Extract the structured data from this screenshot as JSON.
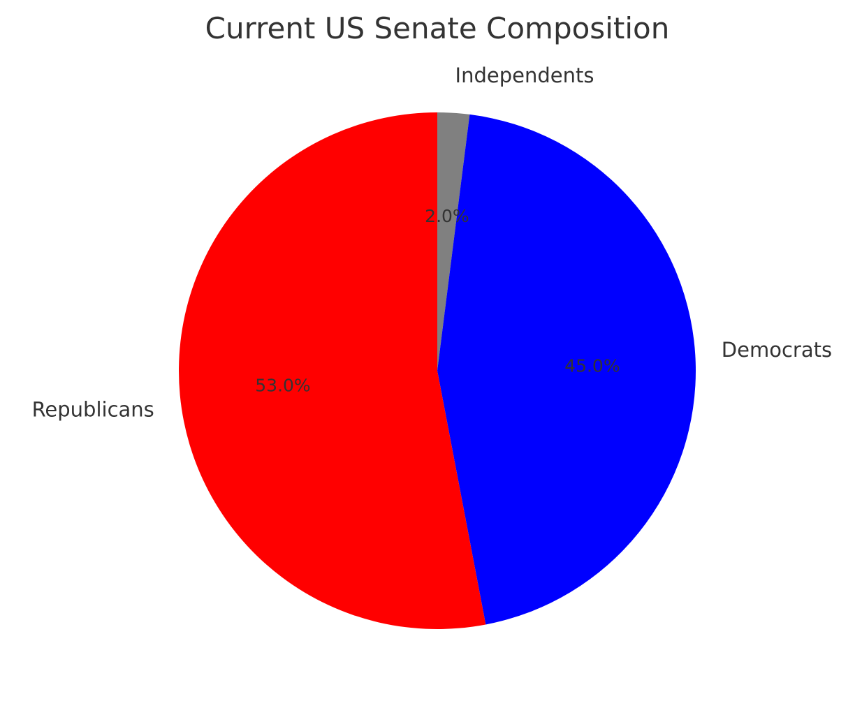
{
  "chart_data": {
    "type": "pie",
    "title": "Current US Senate Composition",
    "start_angle_deg": 90,
    "direction": "clockwise",
    "slices": [
      {
        "label": "Independents",
        "value": 2.0,
        "pct_label": "2.0%",
        "color": "#808080"
      },
      {
        "label": "Democrats",
        "value": 45.0,
        "pct_label": "45.0%",
        "color": "#0000ff"
      },
      {
        "label": "Republicans",
        "value": 53.0,
        "pct_label": "53.0%",
        "color": "#ff0000"
      }
    ]
  }
}
